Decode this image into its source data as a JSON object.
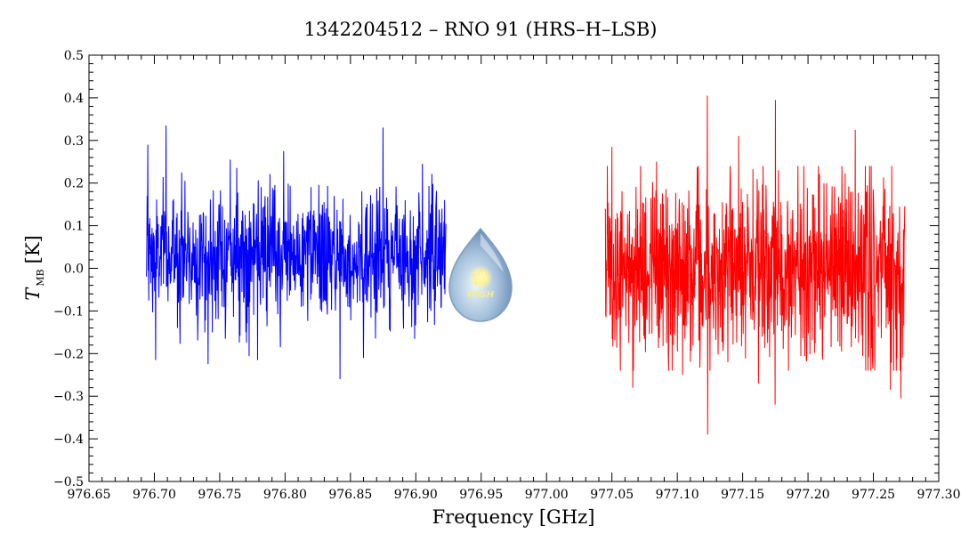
{
  "chart_data": {
    "type": "line",
    "title": "1342204512 – RNO 91 (HRS–H–LSB)",
    "xlabel": "Frequency [GHz]",
    "ylabel_main": "T",
    "ylabel_sub": "MB",
    "ylabel_unit": "[K]",
    "xlim": [
      976.65,
      977.3
    ],
    "ylim": [
      -0.5,
      0.5
    ],
    "xticks": [
      "976.65",
      "976.70",
      "976.75",
      "976.80",
      "976.85",
      "976.90",
      "976.95",
      "977.00",
      "977.05",
      "977.10",
      "977.15",
      "977.20",
      "977.25",
      "977.30"
    ],
    "yticks": [
      "−0.5",
      "−0.4",
      "−0.3",
      "−0.2",
      "−0.1",
      "0.0",
      "0.1",
      "0.2",
      "0.3",
      "0.4",
      "0.5"
    ],
    "grid": false,
    "series": [
      {
        "color": "#0000ff",
        "x_range": [
          976.694,
          976.923
        ],
        "mean": 0.03,
        "sigma": 0.075,
        "peaks": [
          {
            "x": 976.695,
            "y": 0.29
          },
          {
            "x": 976.701,
            "y": -0.215
          },
          {
            "x": 976.709,
            "y": 0.335
          },
          {
            "x": 976.721,
            "y": 0.225
          },
          {
            "x": 976.741,
            "y": -0.225
          },
          {
            "x": 976.758,
            "y": 0.255
          },
          {
            "x": 976.779,
            "y": -0.215
          },
          {
            "x": 976.799,
            "y": 0.275
          },
          {
            "x": 976.842,
            "y": -0.26
          },
          {
            "x": 976.86,
            "y": -0.21
          },
          {
            "x": 976.875,
            "y": 0.33
          },
          {
            "x": 976.905,
            "y": 0.245
          }
        ]
      },
      {
        "color": "#ff0000",
        "x_range": [
          977.045,
          977.274
        ],
        "mean": 0.0,
        "sigma": 0.11,
        "peaks": [
          {
            "x": 977.05,
            "y": 0.285
          },
          {
            "x": 977.066,
            "y": -0.28
          },
          {
            "x": 977.084,
            "y": 0.25
          },
          {
            "x": 977.104,
            "y": -0.25
          },
          {
            "x": 977.123,
            "y": 0.405
          },
          {
            "x": 977.123,
            "y": -0.39
          },
          {
            "x": 977.147,
            "y": 0.31
          },
          {
            "x": 977.162,
            "y": -0.27
          },
          {
            "x": 977.175,
            "y": 0.395
          },
          {
            "x": 977.175,
            "y": -0.32
          },
          {
            "x": 977.236,
            "y": 0.325
          },
          {
            "x": 977.263,
            "y": -0.285
          },
          {
            "x": 977.271,
            "y": -0.305
          }
        ]
      }
    ]
  },
  "logo": {
    "text": "WISH"
  }
}
